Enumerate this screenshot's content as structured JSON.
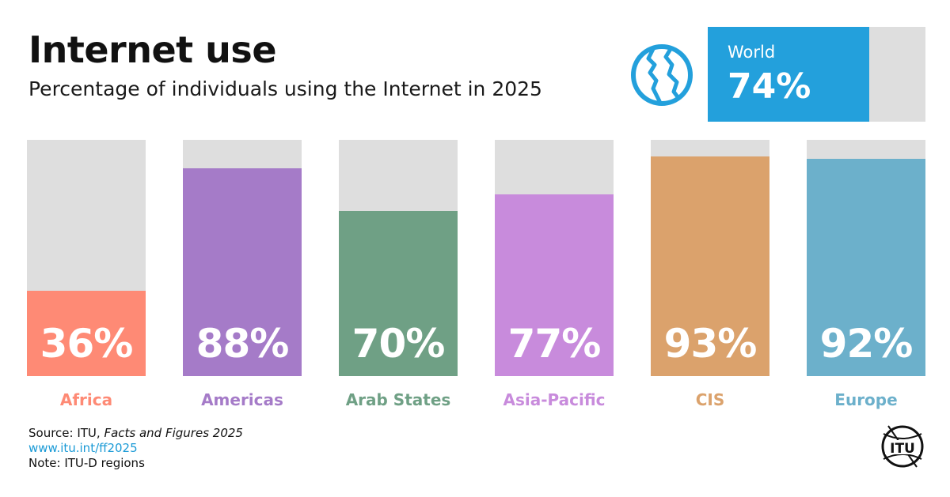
{
  "header": {
    "title": "Internet use",
    "subtitle": "Percentage of individuals using the Internet in 2025"
  },
  "world": {
    "label": "World",
    "value": 74,
    "value_text": "74%",
    "color": "#23a0dc",
    "icon": "globe-icon"
  },
  "chart_data": {
    "type": "bar",
    "title": "Internet use",
    "subtitle": "Percentage of individuals using the Internet in 2025",
    "categories": [
      "Africa",
      "Americas",
      "Arab States",
      "Asia-Pacific",
      "CIS",
      "Europe"
    ],
    "values": [
      36,
      88,
      70,
      77,
      93,
      92
    ],
    "value_labels": [
      "36%",
      "88%",
      "70%",
      "77%",
      "93%",
      "92%"
    ],
    "colors": [
      "#fe8a75",
      "#a57bc8",
      "#6fa085",
      "#c88bdc",
      "#dba26c",
      "#6cb0cb"
    ],
    "ylim": [
      0,
      100
    ],
    "grid": false
  },
  "footer": {
    "source_prefix": "Source: ITU, ",
    "source_title": "Facts and Figures 2025",
    "link": "www.itu.int/ff2025",
    "note": "Note: ITU-D regions",
    "logo_text": "ITU"
  }
}
